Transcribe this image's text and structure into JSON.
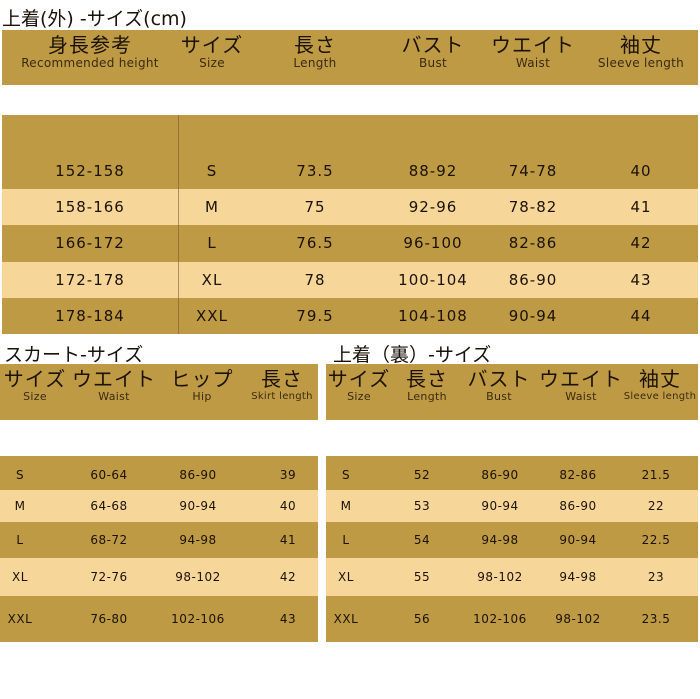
{
  "top": {
    "title": "上着(外) -サイズ(cm)",
    "headers": [
      {
        "jp": "身長参考",
        "en": "Recommended height"
      },
      {
        "jp": "サイズ",
        "en": "Size"
      },
      {
        "jp": "長さ",
        "en": "Length"
      },
      {
        "jp": "バスト",
        "en": "Bust"
      },
      {
        "jp": "ウエイト",
        "en": "Waist"
      },
      {
        "jp": "袖丈",
        "en": "Sleeve length"
      }
    ],
    "rows": [
      [
        "152-158",
        "S",
        "73.5",
        "88-92",
        "74-78",
        "40"
      ],
      [
        "158-166",
        "M",
        "75",
        "92-96",
        "78-82",
        "41"
      ],
      [
        "166-172",
        "L",
        "76.5",
        "96-100",
        "82-86",
        "42"
      ],
      [
        "172-178",
        "XL",
        "78",
        "100-104",
        "86-90",
        "43"
      ],
      [
        "178-184",
        "XXL",
        "79.5",
        "104-108",
        "90-94",
        "44"
      ]
    ]
  },
  "skirt": {
    "title": "スカート-サイズ",
    "headers": [
      {
        "jp": "サイズ",
        "en": "Size"
      },
      {
        "jp": "ウエイト",
        "en": "Waist"
      },
      {
        "jp": "ヒップ",
        "en": "Hip"
      },
      {
        "jp": "長さ",
        "en": "Skirt length"
      }
    ],
    "rows": [
      [
        "S",
        "60-64",
        "86-90",
        "39"
      ],
      [
        "M",
        "64-68",
        "90-94",
        "40"
      ],
      [
        "L",
        "68-72",
        "94-98",
        "41"
      ],
      [
        "XL",
        "72-76",
        "98-102",
        "42"
      ],
      [
        "XXL",
        "76-80",
        "102-106",
        "43"
      ]
    ]
  },
  "inner": {
    "title": "上着（裏）-サイズ",
    "headers": [
      {
        "jp": "サイズ",
        "en": "Size"
      },
      {
        "jp": "長さ",
        "en": "Length"
      },
      {
        "jp": "バスト",
        "en": "Bust"
      },
      {
        "jp": "ウエイト",
        "en": "Waist"
      },
      {
        "jp": "袖丈",
        "en": "Sleeve length"
      }
    ],
    "rows": [
      [
        "S",
        "52",
        "86-90",
        "82-86",
        "21.5"
      ],
      [
        "M",
        "53",
        "90-94",
        "86-90",
        "22"
      ],
      [
        "L",
        "54",
        "94-98",
        "90-94",
        "22.5"
      ],
      [
        "XL",
        "55",
        "98-102",
        "94-98",
        "23"
      ],
      [
        "XXL",
        "56",
        "102-106",
        "98-102",
        "23.5"
      ]
    ]
  },
  "colors": {
    "dark_row": "#bf9a45",
    "light_row": "#f7d69a",
    "background": "#ffffff"
  }
}
